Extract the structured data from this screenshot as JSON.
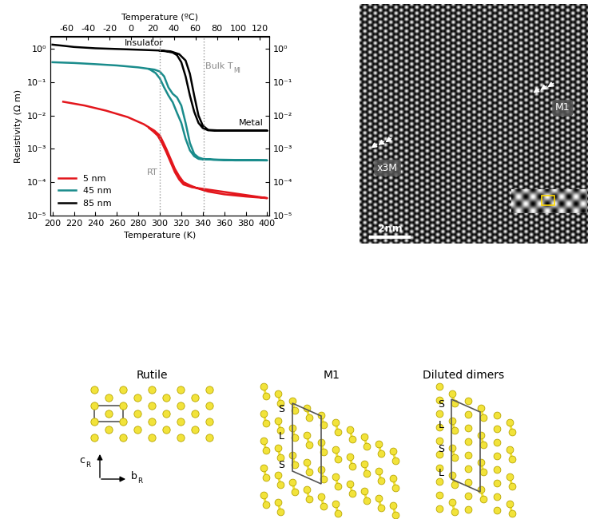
{
  "chart_data": {
    "type": "line",
    "x_label": "Temperature (K)",
    "x2_label": "Temperature (ºC)",
    "y_label": "Resistivity (Ω m)",
    "log": "y",
    "grid": false,
    "legend": "lower left",
    "xlim": [
      198,
      402
    ],
    "xticks": [
      200,
      220,
      240,
      260,
      280,
      300,
      320,
      340,
      360,
      380,
      400
    ],
    "x2ticks": [
      -60,
      -40,
      -20,
      0,
      20,
      40,
      60,
      80,
      100,
      120
    ],
    "ylim": [
      1e-05,
      2.4
    ],
    "yticks": [
      {
        "value": 1e-05,
        "label": "10⁻⁵"
      },
      {
        "value": 0.0001,
        "label": "10⁻⁴"
      },
      {
        "value": 0.001,
        "label": "10⁻³"
      },
      {
        "value": 0.01,
        "label": "10⁻²"
      },
      {
        "value": 0.1,
        "label": "10⁻¹"
      },
      {
        "value": 1,
        "label": "10⁰"
      }
    ],
    "series": [
      {
        "name": "5 nm",
        "color": "#e3161c",
        "x": [
          210,
          230,
          250,
          270,
          285,
          295,
          300,
          303,
          306,
          310,
          314,
          318,
          322,
          328,
          335,
          345,
          360,
          380,
          400,
          400,
          330,
          322,
          318,
          314,
          310,
          306,
          302,
          298,
          294,
          290
        ],
        "values": [
          0.026,
          0.02,
          0.014,
          0.009,
          0.0055,
          0.0035,
          0.0025,
          0.0016,
          0.001,
          0.0005,
          0.00025,
          0.00015,
          0.0001,
          8e-05,
          6.5e-05,
          5.2e-05,
          4.3e-05,
          3.7e-05,
          3.3e-05,
          3.3e-05,
          7e-05,
          8.5e-05,
          0.00012,
          0.0002,
          0.0004,
          0.0008,
          0.0015,
          0.0025,
          0.0033,
          0.0042
        ]
      },
      {
        "name": "45 nm",
        "color": "#1a8c8c",
        "x": [
          200,
          220,
          240,
          260,
          280,
          295,
          300,
          304,
          308,
          312,
          316,
          320,
          324,
          328,
          332,
          336,
          340,
          350,
          370,
          400,
          400,
          340,
          336,
          332,
          328,
          324,
          320,
          316,
          312,
          308,
          304,
          300,
          296,
          290
        ],
        "values": [
          0.4,
          0.38,
          0.35,
          0.32,
          0.28,
          0.24,
          0.21,
          0.15,
          0.07,
          0.045,
          0.035,
          0.02,
          0.006,
          0.0015,
          0.0007,
          0.00055,
          0.0005,
          0.00047,
          0.00045,
          0.00045,
          0.00045,
          0.00048,
          0.0005,
          0.0006,
          0.0009,
          0.002,
          0.006,
          0.012,
          0.025,
          0.04,
          0.07,
          0.13,
          0.19,
          0.25
        ]
      },
      {
        "name": "85 nm",
        "color": "#000000",
        "x": [
          200,
          210,
          220,
          240,
          260,
          280,
          300,
          310,
          318,
          324,
          328,
          332,
          336,
          340,
          345,
          360,
          380,
          400,
          400,
          360,
          345,
          340,
          336,
          332,
          328,
          324,
          320,
          316,
          312,
          306,
          300
        ],
        "values": [
          1.35,
          1.25,
          1.15,
          1.05,
          1.0,
          0.95,
          0.9,
          0.85,
          0.7,
          0.45,
          0.18,
          0.04,
          0.01,
          0.005,
          0.0037,
          0.0035,
          0.0035,
          0.0035,
          0.0035,
          0.0035,
          0.0036,
          0.0042,
          0.006,
          0.013,
          0.04,
          0.15,
          0.4,
          0.65,
          0.78,
          0.85,
          0.9
        ]
      }
    ],
    "annotations": [
      {
        "text": "Insulator",
        "x": 285,
        "y": 1.5
      },
      {
        "text": "Metal",
        "x": 385,
        "y": 0.006
      }
    ],
    "vlines": [
      {
        "x": 300,
        "label": "RT",
        "label_y": 0.0002
      },
      {
        "x": 341,
        "label": "Bulk T",
        "label_sub": "MI",
        "label_y": 0.3
      }
    ]
  },
  "micrograph": {
    "labels": [
      "x3M",
      "M1"
    ],
    "scale_bar": "2nm"
  },
  "structures": [
    {
      "title": "Rutile",
      "axes": [
        {
          "text": "c",
          "sub": "R"
        },
        {
          "text": "b",
          "sub": "R"
        }
      ]
    },
    {
      "title": "M1",
      "sequence": [
        "S",
        "L",
        "S"
      ]
    },
    {
      "title": "Diluted dimers",
      "sequence": [
        "S",
        "L",
        "S",
        "L"
      ]
    }
  ]
}
